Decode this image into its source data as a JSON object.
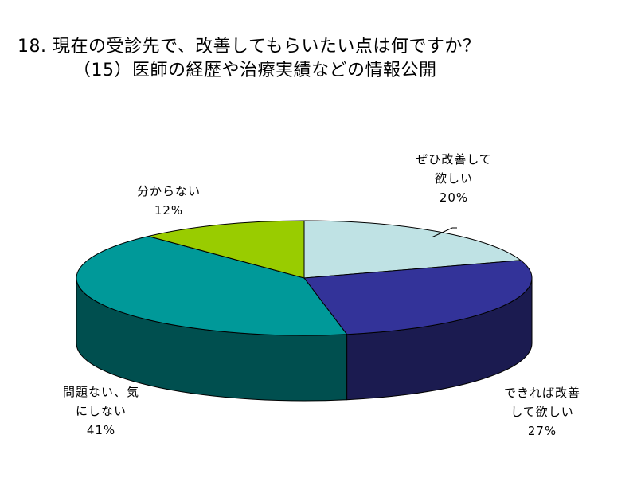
{
  "title": {
    "line1": "18. 現在の受診先で、改善してもらいたい点は何ですか？",
    "line2": "（15）医師の経歴や治療実績などの情報公開"
  },
  "chart_data": {
    "type": "pie",
    "style": "3d",
    "categories": [
      "ぜひ改善して欲しい",
      "できれば改善して欲しい",
      "問題ない、気にしない",
      "分からない"
    ],
    "values": [
      20,
      27,
      41,
      12
    ],
    "unit": "%",
    "colors_top": [
      "#bfe2e4",
      "#333399",
      "#009999",
      "#99cc00"
    ],
    "colors_side": [
      "#9bb8b9",
      "#1b1b50",
      "#004f4f",
      "#5b7a00"
    ],
    "labels": [
      {
        "lines": [
          "ぜひ改善して",
          "欲しい"
        ],
        "pct": "20%"
      },
      {
        "lines": [
          "できれば改善",
          "して欲しい"
        ],
        "pct": "27%"
      },
      {
        "lines": [
          "問題ない、気",
          "にしない"
        ],
        "pct": "41%"
      },
      {
        "lines": [
          "分からない"
        ],
        "pct": "12%"
      }
    ]
  }
}
